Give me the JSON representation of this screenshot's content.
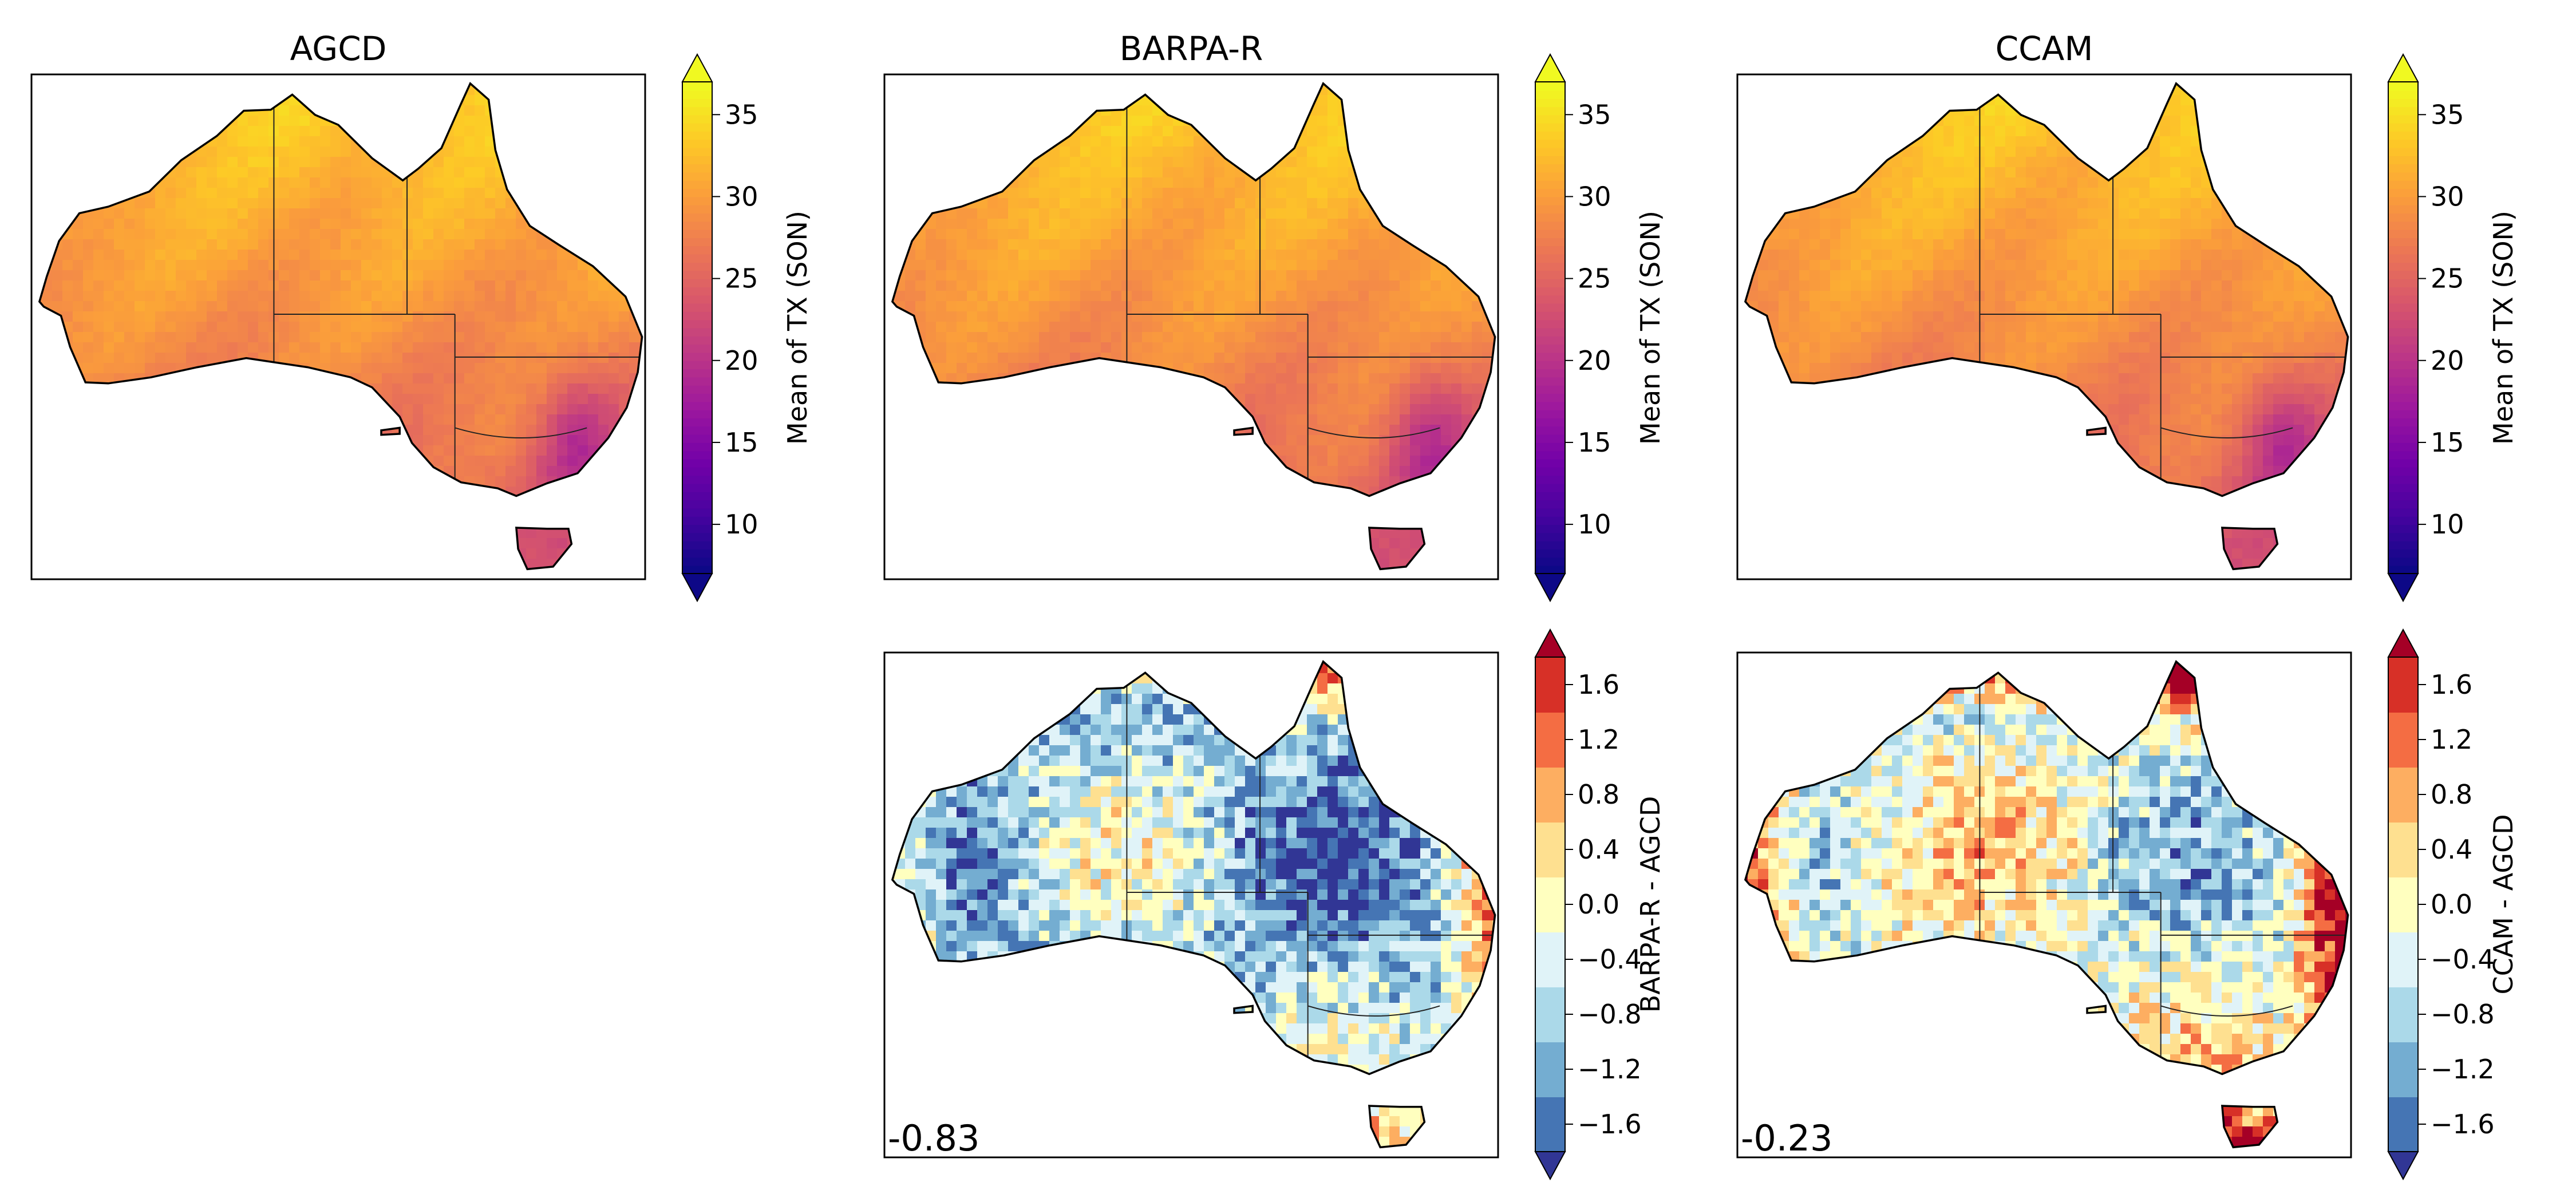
{
  "colors": {
    "plasma": [
      "#0d0887",
      "#46039f",
      "#7201a8",
      "#9c179e",
      "#bd3786",
      "#d8576b",
      "#ed7953",
      "#fb9f3a",
      "#fdca26",
      "#f0f921"
    ],
    "diverging": [
      "#313695",
      "#4575b4",
      "#74add1",
      "#abd9e9",
      "#e0f3f8",
      "#ffffbf",
      "#fee090",
      "#fdae61",
      "#f46d43",
      "#d73027",
      "#a50026"
    ],
    "land_outline": "#000000",
    "state_border": "#222222"
  },
  "panels": [
    {
      "id": "agcd",
      "title": "AGCD",
      "kind": "abs",
      "seed": 11,
      "colorbar_label": "Mean of TX (SON)",
      "ticks": [
        10,
        15,
        20,
        25,
        30,
        35
      ],
      "range": [
        7,
        37
      ],
      "corner_value": ""
    },
    {
      "id": "barpa",
      "title": "BARPA-R",
      "kind": "abs",
      "seed": 23,
      "colorbar_label": "Mean of TX (SON)",
      "ticks": [
        10,
        15,
        20,
        25,
        30,
        35
      ],
      "range": [
        7,
        37
      ],
      "corner_value": ""
    },
    {
      "id": "ccam",
      "title": "CCAM",
      "kind": "abs",
      "seed": 37,
      "colorbar_label": "Mean of TX (SON)",
      "ticks": [
        10,
        15,
        20,
        25,
        30,
        35
      ],
      "range": [
        7,
        37
      ],
      "corner_value": ""
    },
    {
      "id": "barpa-diff",
      "title": "",
      "kind": "diff",
      "bias": -0.83,
      "seed": 51,
      "colorbar_label": "BARPA-R - AGCD",
      "ticks": [
        "−1.6",
        "−1.2",
        "−0.8",
        "−0.4",
        "0.0",
        "0.4",
        "0.8",
        "1.2",
        "1.6"
      ],
      "range": [
        -1.8,
        1.8
      ],
      "corner_value": "-0.83"
    },
    {
      "id": "ccam-diff",
      "title": "",
      "kind": "diff",
      "bias": -0.23,
      "seed": 73,
      "colorbar_label": "CCAM - AGCD",
      "ticks": [
        "−1.6",
        "−1.2",
        "−0.8",
        "−0.4",
        "0.0",
        "0.4",
        "0.8",
        "1.2",
        "1.6"
      ],
      "range": [
        -1.8,
        1.8
      ],
      "corner_value": "-0.23"
    }
  ]
}
